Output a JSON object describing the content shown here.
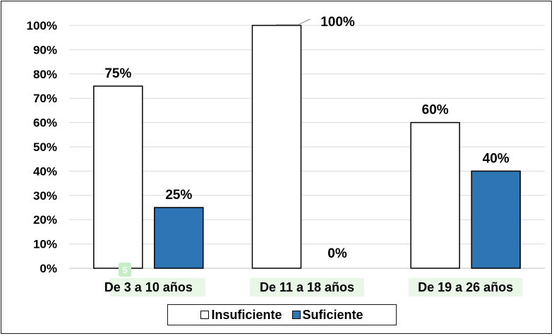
{
  "chart_data": {
    "type": "bar",
    "categories": [
      "De 3 a 10 años",
      "De 11 a 18 años",
      "De 19 a 26 años"
    ],
    "series": [
      {
        "name": "Insuficiente",
        "values": [
          75,
          100,
          60
        ],
        "color": "#ffffff",
        "labels": [
          "75%",
          "100%",
          "60%"
        ]
      },
      {
        "name": "Suficiente",
        "values": [
          25,
          0,
          40
        ],
        "color": "#2e75b6",
        "labels": [
          "25%",
          "0%",
          "40%"
        ]
      }
    ],
    "ylim": [
      0,
      100
    ],
    "yticks": [
      "0%",
      "10%",
      "20%",
      "30%",
      "40%",
      "50%",
      "60%",
      "70%",
      "80%",
      "90%",
      "100%"
    ],
    "grid": true,
    "legend_position": "bottom"
  },
  "overlay_badge": "5"
}
